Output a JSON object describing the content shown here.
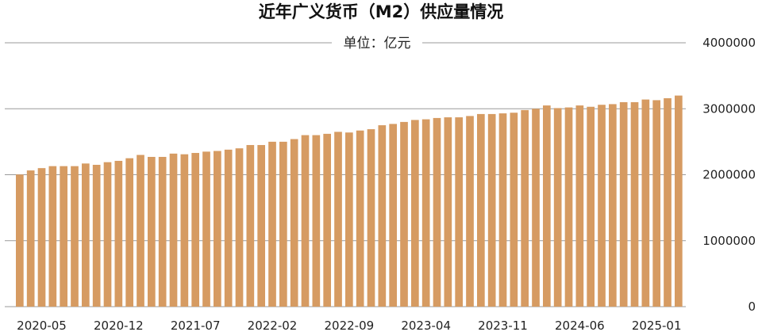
{
  "colors": {
    "bar": "#D69B62",
    "grid": "#9a9a9a"
  },
  "chart_data": {
    "type": "bar",
    "title": "近年广义货币（M2）供应量情况",
    "unit_label": "单位：亿元",
    "ylim": [
      0,
      4000000
    ],
    "yticks": [
      0,
      1000000,
      2000000,
      3000000,
      4000000
    ],
    "ytick_labels": [
      "0",
      "1000000",
      "2000000",
      "3000000",
      "4000000"
    ],
    "y_axis_position": "right",
    "grid": true,
    "categories": [
      "2020-03",
      "2020-04",
      "2020-05",
      "2020-06",
      "2020-07",
      "2020-08",
      "2020-09",
      "2020-10",
      "2020-11",
      "2020-12",
      "2021-01",
      "2021-02",
      "2021-03",
      "2021-04",
      "2021-05",
      "2021-06",
      "2021-07",
      "2021-08",
      "2021-09",
      "2021-10",
      "2021-11",
      "2021-12",
      "2022-01",
      "2022-02",
      "2022-03",
      "2022-04",
      "2022-05",
      "2022-06",
      "2022-07",
      "2022-08",
      "2022-09",
      "2022-10",
      "2022-11",
      "2022-12",
      "2023-01",
      "2023-02",
      "2023-03",
      "2023-04",
      "2023-05",
      "2023-06",
      "2023-07",
      "2023-08",
      "2023-09",
      "2023-10",
      "2023-11",
      "2023-12",
      "2024-01",
      "2024-02",
      "2024-03",
      "2024-04",
      "2024-05",
      "2024-06",
      "2024-07",
      "2024-08",
      "2024-09",
      "2024-10",
      "2024-11",
      "2024-12",
      "2025-01",
      "2025-02",
      "2025-03"
    ],
    "values": [
      2003000,
      2065000,
      2100000,
      2130000,
      2130000,
      2130000,
      2170000,
      2150000,
      2190000,
      2210000,
      2250000,
      2300000,
      2270000,
      2270000,
      2320000,
      2310000,
      2330000,
      2350000,
      2360000,
      2380000,
      2400000,
      2450000,
      2450000,
      2500000,
      2500000,
      2540000,
      2600000,
      2600000,
      2620000,
      2650000,
      2640000,
      2670000,
      2690000,
      2750000,
      2770000,
      2800000,
      2830000,
      2840000,
      2860000,
      2870000,
      2870000,
      2890000,
      2920000,
      2920000,
      2930000,
      2940000,
      2980000,
      3000000,
      3050000,
      3010000,
      3020000,
      3050000,
      3030000,
      3060000,
      3070000,
      3100000,
      3100000,
      3140000,
      3130000,
      3160000,
      3200000
    ],
    "xtick_labels": [
      "2020-05",
      "2020-12",
      "2021-07",
      "2022-02",
      "2022-09",
      "2023-04",
      "2023-11",
      "2024-06",
      "2025-01"
    ]
  }
}
